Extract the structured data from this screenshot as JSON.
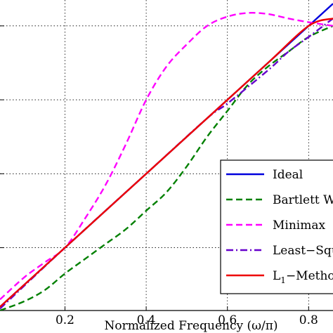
{
  "chart_data": {
    "type": "line",
    "title": "",
    "xlabel": "Normalized Frequency (ω/π)",
    "ylabel": "",
    "xlim": [
      0.04,
      0.86
    ],
    "ylim": [
      0.03,
      0.87
    ],
    "grid": true,
    "grid_style": "dotted",
    "x_ticks": [
      0.2,
      0.4,
      0.6,
      0.8
    ],
    "x_tick_labels": [
      "0.2",
      "0.4",
      "0.6",
      "0.8"
    ],
    "y_ticks": [
      0.2,
      0.4,
      0.6,
      0.8
    ],
    "legend_position": "bottom-right",
    "series": [
      {
        "name": "Ideal",
        "color": "#0000dd",
        "dash": "solid",
        "x": [
          0.04,
          0.86
        ],
        "y": [
          0.04,
          0.86
        ]
      },
      {
        "name": "Bartlett W",
        "color": "#008000",
        "dash": "dashed",
        "x": [
          0.04,
          0.1,
          0.15,
          0.2,
          0.25,
          0.3,
          0.35,
          0.4,
          0.45,
          0.5,
          0.55,
          0.6,
          0.65,
          0.7,
          0.75,
          0.8,
          0.86
        ],
        "y": [
          0.03,
          0.055,
          0.085,
          0.13,
          0.17,
          0.21,
          0.25,
          0.3,
          0.35,
          0.42,
          0.5,
          0.57,
          0.64,
          0.69,
          0.73,
          0.77,
          0.8
        ]
      },
      {
        "name": "Minimax",
        "color": "#ff00ff",
        "dash": "dashed",
        "x": [
          0.04,
          0.1,
          0.15,
          0.2,
          0.25,
          0.3,
          0.35,
          0.4,
          0.45,
          0.5,
          0.55,
          0.6,
          0.65,
          0.7,
          0.75,
          0.8,
          0.86
        ],
        "y": [
          0.06,
          0.12,
          0.16,
          0.2,
          0.28,
          0.37,
          0.48,
          0.6,
          0.69,
          0.75,
          0.8,
          0.825,
          0.835,
          0.832,
          0.82,
          0.81,
          0.8
        ]
      },
      {
        "name": "Least−Squ",
        "color": "#6600cc",
        "dash": "dashdot",
        "x": [
          0.04,
          0.2,
          0.4,
          0.55,
          0.6,
          0.7,
          0.75,
          0.8,
          0.86
        ],
        "y": [
          0.035,
          0.2,
          0.4,
          0.55,
          0.59,
          0.68,
          0.73,
          0.77,
          0.82
        ]
      },
      {
        "name": "L1−Metho",
        "name_main": "L",
        "name_sub": "1",
        "name_rest": "−Metho",
        "color": "#ee0000",
        "dash": "solid",
        "x": [
          0.04,
          0.2,
          0.4,
          0.6,
          0.7,
          0.8,
          0.86
        ],
        "y": [
          0.04,
          0.2,
          0.4,
          0.6,
          0.7,
          0.8,
          0.82
        ]
      }
    ]
  }
}
